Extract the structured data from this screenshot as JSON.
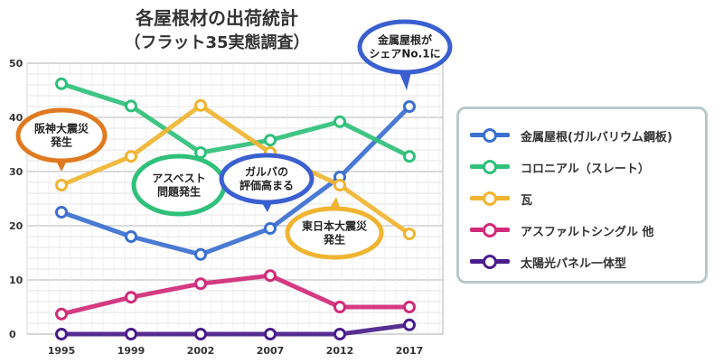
{
  "chart_data": {
    "type": "line",
    "title": "各屋根材の出荷統計",
    "subtitle": "（フラット35実態調査）",
    "categories": [
      "1995",
      "1999",
      "2002",
      "2007",
      "2012",
      "2017"
    ],
    "ylim": [
      0,
      50
    ],
    "yticks": [
      0,
      10,
      20,
      30,
      40,
      50
    ],
    "grid": true,
    "legend_position": "right",
    "series": [
      {
        "name": "金属屋根(ガルバリウム鋼板)",
        "color": "#3a6fd0",
        "values": [
          22.5,
          18,
          14.7,
          19.5,
          29,
          42
        ]
      },
      {
        "name": "コロニアル（スレート）",
        "color": "#2fc07a",
        "values": [
          46.2,
          42.1,
          33.5,
          35.8,
          39.2,
          32.8
        ]
      },
      {
        "name": "瓦",
        "color": "#f0b430",
        "values": [
          27.5,
          32.8,
          42.2,
          33.5,
          27.5,
          18.5
        ]
      },
      {
        "name": "アスファルトシングル 他",
        "color": "#d12a78",
        "values": [
          3.7,
          6.8,
          9.3,
          10.8,
          5.0,
          5.0
        ]
      },
      {
        "name": "太陽光パネル一体型",
        "color": "#4a1c8a",
        "values": [
          0,
          0,
          0,
          0,
          0,
          1.7
        ]
      }
    ],
    "annotations": [
      {
        "text": [
          "阪神大震災",
          "発生"
        ],
        "color": "#e07a20"
      },
      {
        "text": [
          "アスベスト",
          "問題発生"
        ],
        "color": "#2fc07a"
      },
      {
        "text": [
          "ガルバの",
          "評価高まる"
        ],
        "color": "#3a5fd0"
      },
      {
        "text": [
          "東日本大震災",
          "発生"
        ],
        "color": "#f0b430"
      },
      {
        "text": [
          "金属屋根が",
          "シェアNo.1に"
        ],
        "color": "#3a5fd0"
      }
    ]
  }
}
